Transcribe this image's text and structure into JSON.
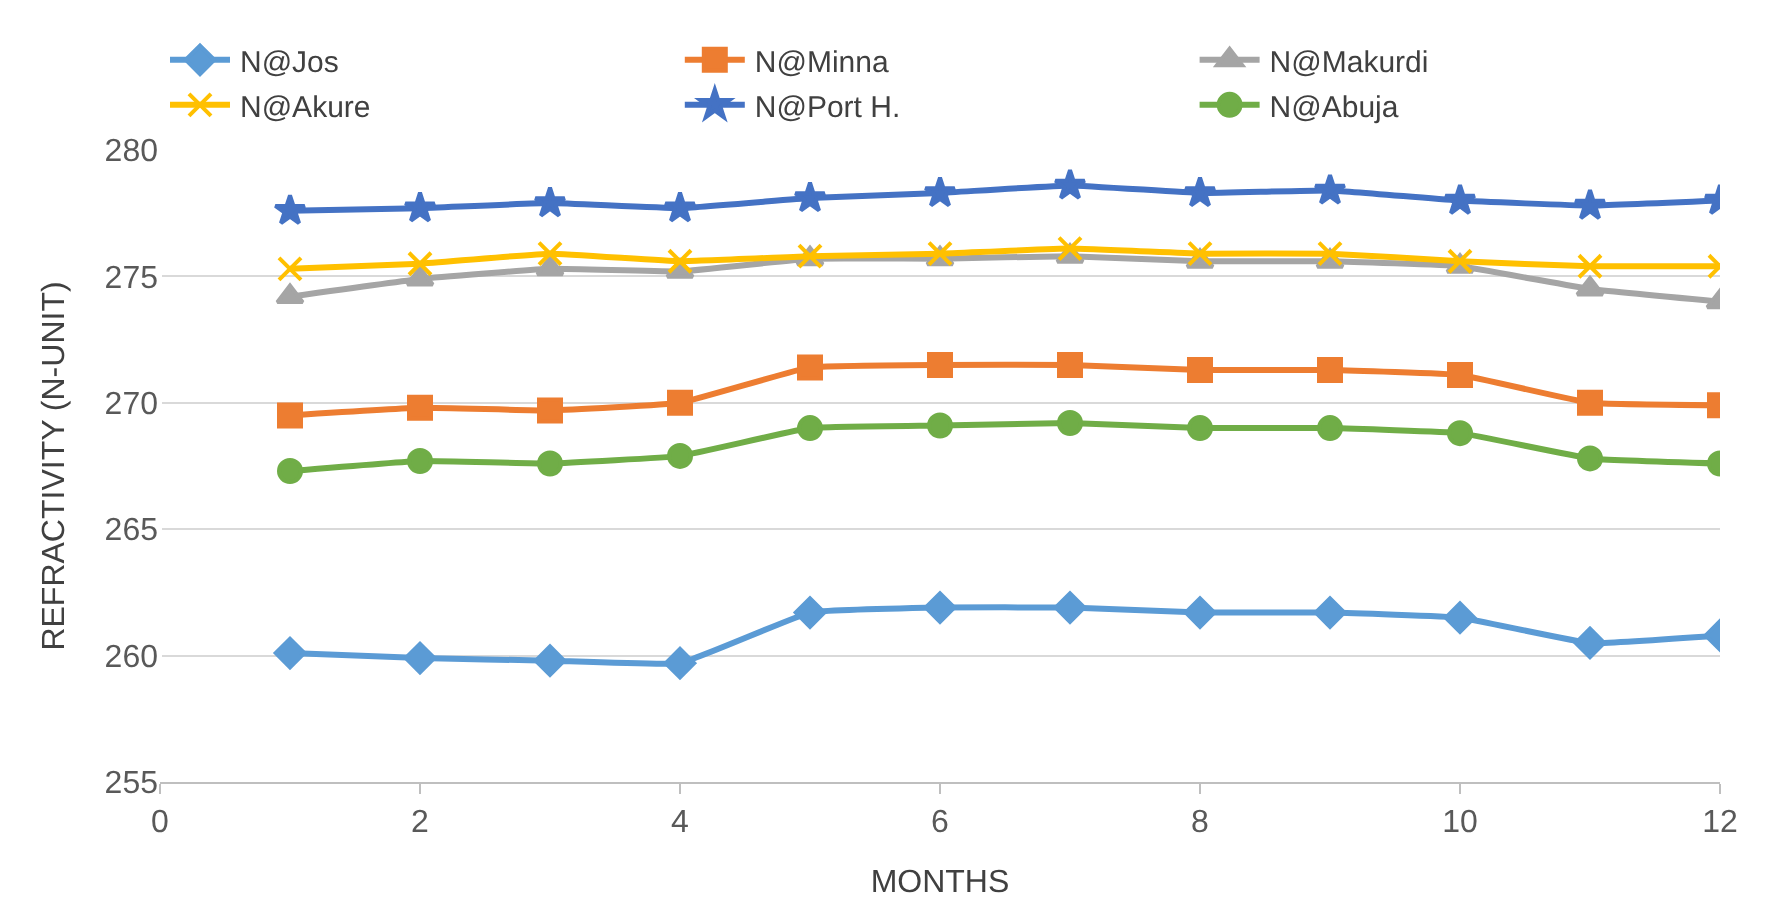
{
  "chart_data": {
    "type": "line",
    "xlabel": "MONTHS",
    "ylabel": "REFRACTIVITY (N-UNIT)",
    "x": [
      1,
      2,
      3,
      4,
      5,
      6,
      7,
      8,
      9,
      10,
      11,
      12
    ],
    "xlim": [
      0,
      12
    ],
    "xticks": [
      0,
      2,
      4,
      6,
      8,
      10,
      12
    ],
    "ylim": [
      255,
      280
    ],
    "yticks": [
      255,
      260,
      265,
      270,
      275,
      280
    ],
    "grid": "y",
    "legend": "top",
    "series": [
      {
        "name": "N@Jos",
        "color": "#5b9bd5",
        "marker": "diamond",
        "values": [
          260.1,
          259.9,
          259.8,
          259.7,
          261.7,
          261.9,
          261.9,
          261.7,
          261.7,
          261.5,
          260.5,
          260.8
        ]
      },
      {
        "name": "N@Minna",
        "color": "#ed7d31",
        "marker": "square",
        "values": [
          269.5,
          269.8,
          269.7,
          270.0,
          271.4,
          271.5,
          271.5,
          271.3,
          271.3,
          271.1,
          270.0,
          269.9
        ]
      },
      {
        "name": "N@Makurdi",
        "color": "#a5a5a5",
        "marker": "triangle",
        "values": [
          274.2,
          274.9,
          275.3,
          275.2,
          275.7,
          275.7,
          275.8,
          275.6,
          275.6,
          275.4,
          274.5,
          274.0
        ]
      },
      {
        "name": "N@Akure",
        "color": "#ffc000",
        "marker": "cross",
        "values": [
          275.3,
          275.5,
          275.9,
          275.6,
          275.8,
          275.9,
          276.1,
          275.9,
          275.9,
          275.6,
          275.4,
          275.4
        ]
      },
      {
        "name": "N@Port H.",
        "color": "#4472c4",
        "marker": "star",
        "values": [
          277.6,
          277.7,
          277.9,
          277.7,
          278.1,
          278.3,
          278.6,
          278.3,
          278.4,
          278.0,
          277.8,
          278.0
        ]
      },
      {
        "name": "N@Abuja",
        "color": "#70ad47",
        "marker": "circle",
        "values": [
          267.3,
          267.7,
          267.6,
          267.9,
          269.0,
          269.1,
          269.2,
          269.0,
          269.0,
          268.8,
          267.8,
          267.6
        ]
      }
    ]
  }
}
